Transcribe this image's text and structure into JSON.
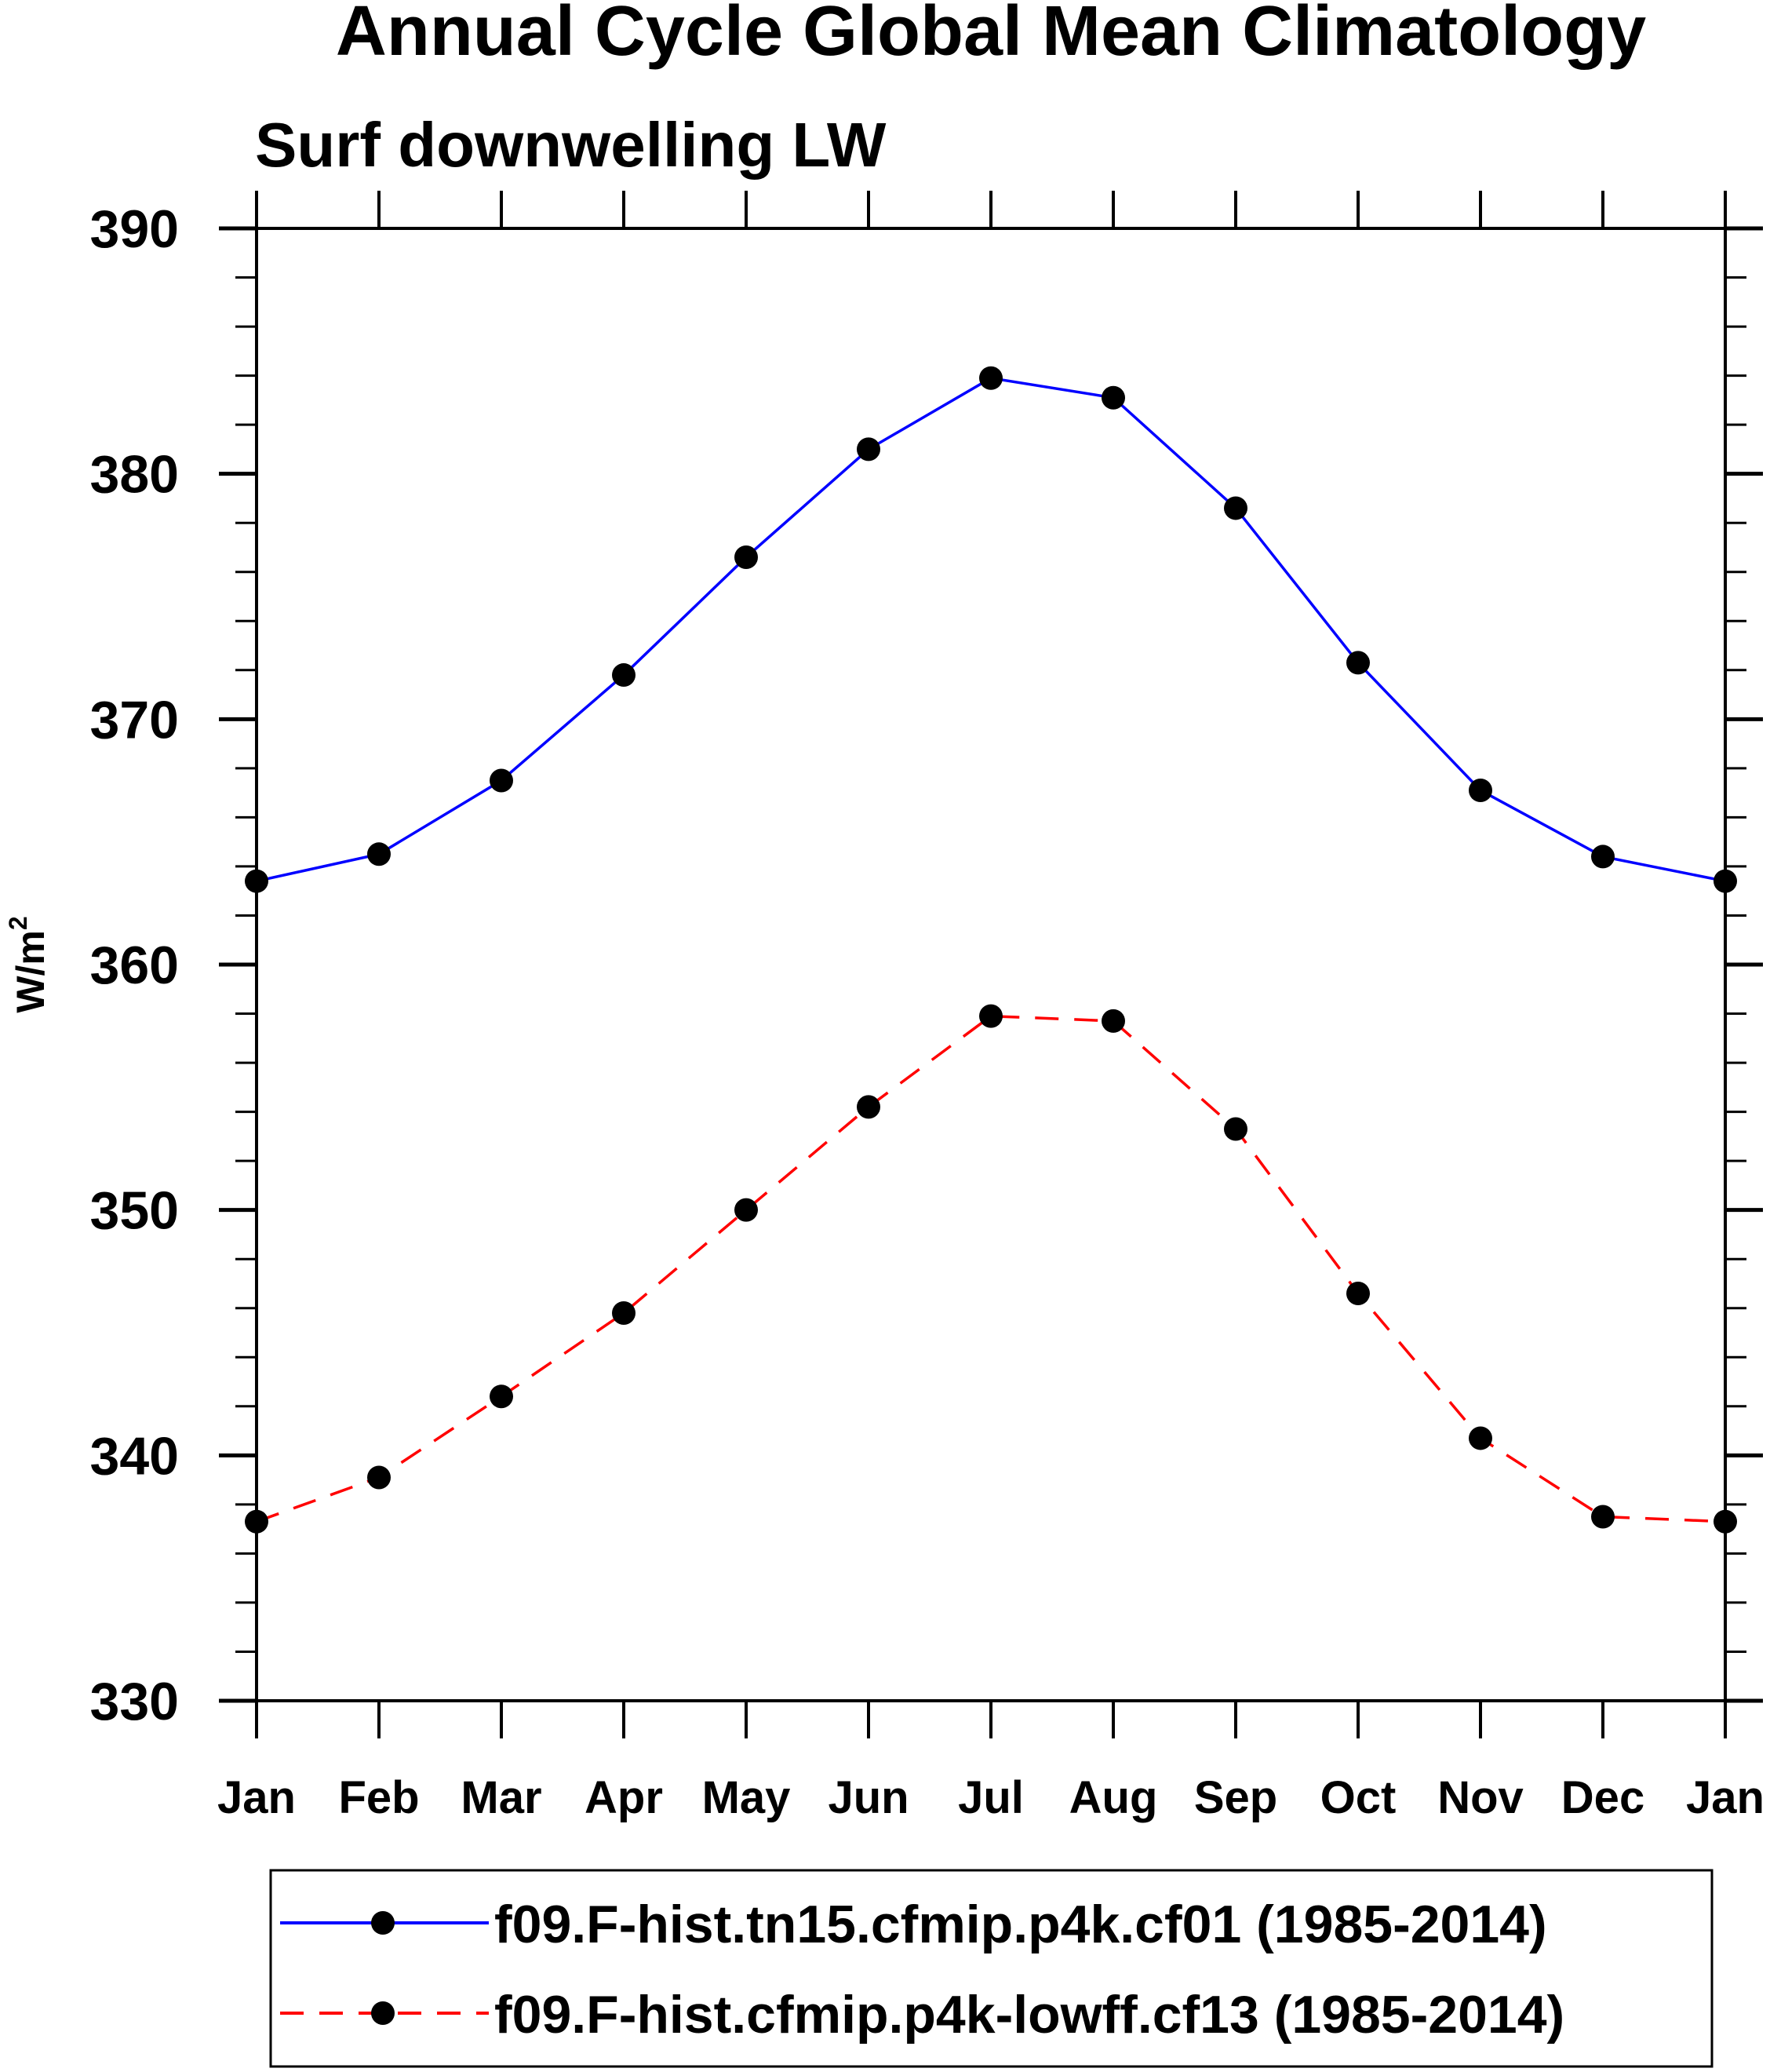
{
  "chart_data": {
    "type": "line",
    "title": "Annual Cycle Global Mean Climatology",
    "subtitle": "Surf downwelling LW",
    "xlabel": "",
    "ylabel": "W/m",
    "ylabel_superscript": "2",
    "categories": [
      "Jan",
      "Feb",
      "Mar",
      "Apr",
      "May",
      "Jun",
      "Jul",
      "Aug",
      "Sep",
      "Oct",
      "Nov",
      "Dec",
      "Jan"
    ],
    "ylim": [
      330,
      390
    ],
    "yticks": [
      330,
      340,
      350,
      360,
      370,
      380,
      390
    ],
    "yminor_step": 2,
    "grid": false,
    "legend_position": "bottom",
    "series": [
      {
        "name": "f09.F-hist.tn15.cfmip.p4k.cf01 (1985-2014)",
        "color": "#0000ff",
        "dash": "solid",
        "values": [
          363.4,
          364.5,
          367.5,
          371.8,
          376.6,
          381.0,
          383.9,
          383.1,
          378.6,
          372.3,
          367.1,
          364.4,
          363.4
        ]
      },
      {
        "name": "f09.F-hist.cfmip.p4k-lowff.cf13 (1985-2014)",
        "color": "#ff0000",
        "dash": "dashed",
        "values": [
          337.3,
          339.1,
          342.4,
          345.8,
          350.0,
          354.2,
          357.9,
          357.7,
          353.3,
          346.6,
          340.7,
          337.5,
          337.3
        ]
      }
    ]
  }
}
